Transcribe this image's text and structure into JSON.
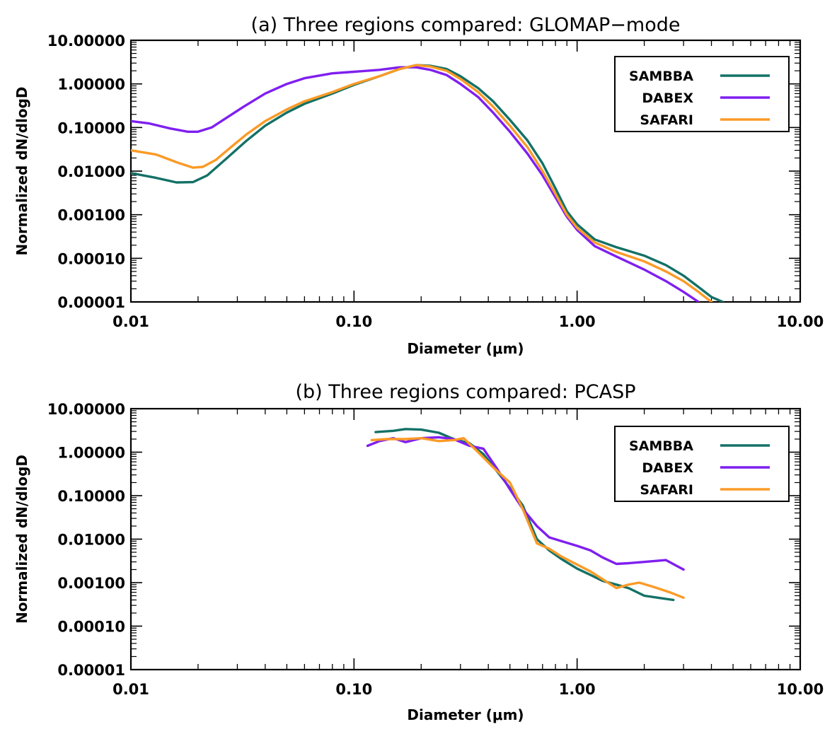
{
  "colors": {
    "SAMBBA": "#137166",
    "DABEX": "#7f1ff0",
    "SAFARI": "#fb9a26"
  },
  "chart_data": [
    {
      "type": "line",
      "title": "(a) Three regions compared: GLOMAP−mode",
      "xlabel": "Diameter (μm)",
      "ylabel": "Normalized dN/dlogD",
      "xscale": "log",
      "yscale": "log",
      "xlim": [
        0.01,
        10
      ],
      "ylim": [
        1e-05,
        10
      ],
      "x_ticks": [
        "0.01",
        "0.10",
        "1.00",
        "10.00"
      ],
      "y_ticks": [
        "0.00001",
        "0.00010",
        "0.00100",
        "0.01000",
        "0.10000",
        "1.00000",
        "10.00000"
      ],
      "legend_position": "top-right",
      "series": [
        {
          "name": "SAMBBA",
          "points": [
            [
              0.01,
              0.009
            ],
            [
              0.013,
              0.007
            ],
            [
              0.016,
              0.0055
            ],
            [
              0.019,
              0.0056
            ],
            [
              0.022,
              0.008
            ],
            [
              0.027,
              0.02
            ],
            [
              0.033,
              0.05
            ],
            [
              0.04,
              0.11
            ],
            [
              0.05,
              0.22
            ],
            [
              0.06,
              0.35
            ],
            [
              0.08,
              0.6
            ],
            [
              0.1,
              0.95
            ],
            [
              0.13,
              1.5
            ],
            [
              0.16,
              2.2
            ],
            [
              0.19,
              2.7
            ],
            [
              0.22,
              2.6
            ],
            [
              0.26,
              2.2
            ],
            [
              0.3,
              1.5
            ],
            [
              0.36,
              0.8
            ],
            [
              0.42,
              0.4
            ],
            [
              0.5,
              0.15
            ],
            [
              0.6,
              0.05
            ],
            [
              0.7,
              0.015
            ],
            [
              0.8,
              0.004
            ],
            [
              0.9,
              0.0012
            ],
            [
              1.0,
              0.0006
            ],
            [
              1.2,
              0.00027
            ],
            [
              1.5,
              0.00018
            ],
            [
              2.0,
              0.000115
            ],
            [
              2.5,
              7e-05
            ],
            [
              3.0,
              4e-05
            ],
            [
              3.5,
              2.2e-05
            ],
            [
              4.0,
              1.3e-05
            ],
            [
              4.5,
              1e-05
            ]
          ]
        },
        {
          "name": "DABEX",
          "points": [
            [
              0.01,
              0.14
            ],
            [
              0.012,
              0.125
            ],
            [
              0.015,
              0.095
            ],
            [
              0.018,
              0.08
            ],
            [
              0.02,
              0.08
            ],
            [
              0.023,
              0.1
            ],
            [
              0.027,
              0.17
            ],
            [
              0.032,
              0.3
            ],
            [
              0.04,
              0.6
            ],
            [
              0.05,
              1.0
            ],
            [
              0.06,
              1.35
            ],
            [
              0.08,
              1.75
            ],
            [
              0.1,
              1.9
            ],
            [
              0.13,
              2.1
            ],
            [
              0.16,
              2.4
            ],
            [
              0.19,
              2.4
            ],
            [
              0.22,
              2.1
            ],
            [
              0.26,
              1.6
            ],
            [
              0.3,
              1.0
            ],
            [
              0.36,
              0.5
            ],
            [
              0.42,
              0.22
            ],
            [
              0.5,
              0.08
            ],
            [
              0.6,
              0.025
            ],
            [
              0.7,
              0.008
            ],
            [
              0.8,
              0.0025
            ],
            [
              0.9,
              0.0009
            ],
            [
              1.0,
              0.00045
            ],
            [
              1.2,
              0.00019
            ],
            [
              1.5,
              0.00011
            ],
            [
              2.0,
              5.5e-05
            ],
            [
              2.5,
              3e-05
            ],
            [
              3.0,
              1.7e-05
            ],
            [
              3.5,
              1e-05
            ]
          ]
        },
        {
          "name": "SAFARI",
          "points": [
            [
              0.01,
              0.03
            ],
            [
              0.013,
              0.024
            ],
            [
              0.016,
              0.016
            ],
            [
              0.019,
              0.012
            ],
            [
              0.021,
              0.0125
            ],
            [
              0.024,
              0.018
            ],
            [
              0.028,
              0.035
            ],
            [
              0.033,
              0.07
            ],
            [
              0.04,
              0.14
            ],
            [
              0.05,
              0.26
            ],
            [
              0.06,
              0.4
            ],
            [
              0.08,
              0.65
            ],
            [
              0.1,
              1.0
            ],
            [
              0.13,
              1.5
            ],
            [
              0.16,
              2.2
            ],
            [
              0.19,
              2.7
            ],
            [
              0.22,
              2.5
            ],
            [
              0.26,
              2.0
            ],
            [
              0.3,
              1.3
            ],
            [
              0.36,
              0.65
            ],
            [
              0.42,
              0.3
            ],
            [
              0.5,
              0.11
            ],
            [
              0.6,
              0.035
            ],
            [
              0.7,
              0.01
            ],
            [
              0.8,
              0.003
            ],
            [
              0.9,
              0.001
            ],
            [
              1.0,
              0.0005
            ],
            [
              1.2,
              0.00023
            ],
            [
              1.5,
              0.00014
            ],
            [
              2.0,
              8.5e-05
            ],
            [
              2.5,
              5e-05
            ],
            [
              3.0,
              3e-05
            ],
            [
              3.5,
              1.7e-05
            ],
            [
              4.0,
              1e-05
            ]
          ]
        }
      ]
    },
    {
      "type": "line",
      "title": "(b) Three regions compared: PCASP",
      "xlabel": "Diameter (μm)",
      "ylabel": "Normalized dN/dlogD",
      "xscale": "log",
      "yscale": "log",
      "xlim": [
        0.01,
        10
      ],
      "ylim": [
        1e-05,
        10
      ],
      "x_ticks": [
        "0.01",
        "0.10",
        "1.00",
        "10.00"
      ],
      "y_ticks": [
        "0.00001",
        "0.00010",
        "0.00100",
        "0.01000",
        "0.10000",
        "1.00000",
        "10.00000"
      ],
      "legend_position": "top-right",
      "series": [
        {
          "name": "SAMBBA",
          "points": [
            [
              0.125,
              2.9
            ],
            [
              0.15,
              3.1
            ],
            [
              0.17,
              3.4
            ],
            [
              0.2,
              3.3
            ],
            [
              0.24,
              2.8
            ],
            [
              0.28,
              2.0
            ],
            [
              0.33,
              1.6
            ],
            [
              0.38,
              0.9
            ],
            [
              0.44,
              0.35
            ],
            [
              0.5,
              0.15
            ],
            [
              0.57,
              0.06
            ],
            [
              0.66,
              0.01
            ],
            [
              0.75,
              0.0055
            ],
            [
              0.85,
              0.0035
            ],
            [
              1.0,
              0.0021
            ],
            [
              1.15,
              0.0015
            ],
            [
              1.3,
              0.0011
            ],
            [
              1.5,
              0.0009
            ],
            [
              1.7,
              0.00075
            ],
            [
              2.0,
              0.0005
            ],
            [
              2.3,
              0.00045
            ],
            [
              2.7,
              0.0004
            ]
          ]
        },
        {
          "name": "DABEX",
          "points": [
            [
              0.115,
              1.4
            ],
            [
              0.13,
              1.8
            ],
            [
              0.15,
              2.1
            ],
            [
              0.17,
              1.7
            ],
            [
              0.2,
              2.1
            ],
            [
              0.24,
              2.2
            ],
            [
              0.28,
              2.0
            ],
            [
              0.33,
              1.4
            ],
            [
              0.38,
              1.2
            ],
            [
              0.44,
              0.4
            ],
            [
              0.5,
              0.14
            ],
            [
              0.57,
              0.05
            ],
            [
              0.66,
              0.02
            ],
            [
              0.75,
              0.011
            ],
            [
              0.85,
              0.009
            ],
            [
              1.0,
              0.007
            ],
            [
              1.15,
              0.0055
            ],
            [
              1.3,
              0.0038
            ],
            [
              1.5,
              0.0027
            ],
            [
              1.7,
              0.0028
            ],
            [
              2.0,
              0.003
            ],
            [
              2.5,
              0.0033
            ],
            [
              3.0,
              0.002
            ]
          ]
        },
        {
          "name": "SAFARI",
          "points": [
            [
              0.12,
              1.9
            ],
            [
              0.14,
              2.0
            ],
            [
              0.17,
              2.0
            ],
            [
              0.2,
              2.1
            ],
            [
              0.24,
              1.8
            ],
            [
              0.28,
              1.9
            ],
            [
              0.31,
              2.1
            ],
            [
              0.36,
              1.0
            ],
            [
              0.42,
              0.45
            ],
            [
              0.5,
              0.2
            ],
            [
              0.57,
              0.05
            ],
            [
              0.66,
              0.008
            ],
            [
              0.75,
              0.006
            ],
            [
              0.85,
              0.004
            ],
            [
              1.0,
              0.0026
            ],
            [
              1.15,
              0.0018
            ],
            [
              1.3,
              0.0012
            ],
            [
              1.5,
              0.00075
            ],
            [
              1.7,
              0.0009
            ],
            [
              1.9,
              0.001
            ],
            [
              2.2,
              0.0008
            ],
            [
              2.6,
              0.0006
            ],
            [
              3.0,
              0.00045
            ]
          ]
        }
      ]
    }
  ]
}
